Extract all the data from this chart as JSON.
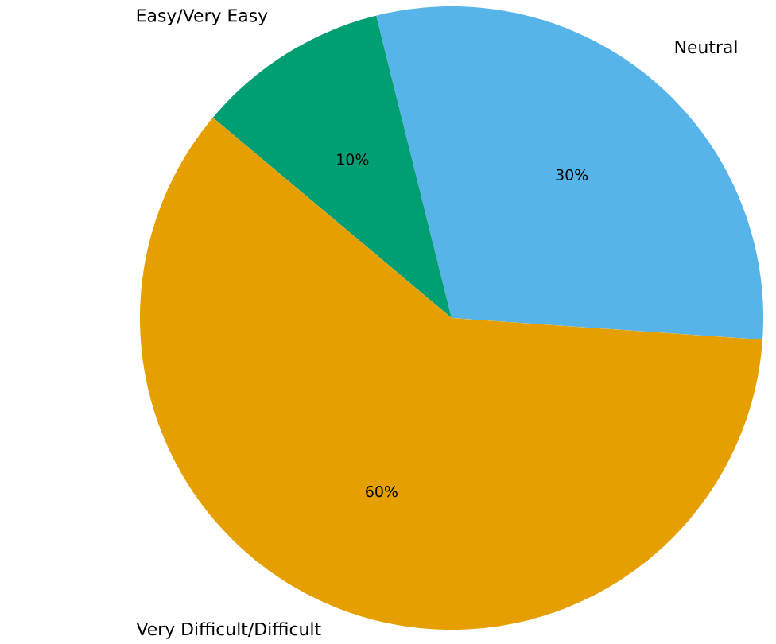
{
  "chart_data": {
    "type": "pie",
    "categories": [
      "Neutral",
      "Easy/Very Easy",
      "Very Difficult/Difficult"
    ],
    "values": [
      30,
      10,
      60
    ],
    "colors": [
      "#56b4e9",
      "#009e73",
      "#e69f00"
    ],
    "value_labels": [
      "30%",
      "10%",
      "60%"
    ]
  }
}
